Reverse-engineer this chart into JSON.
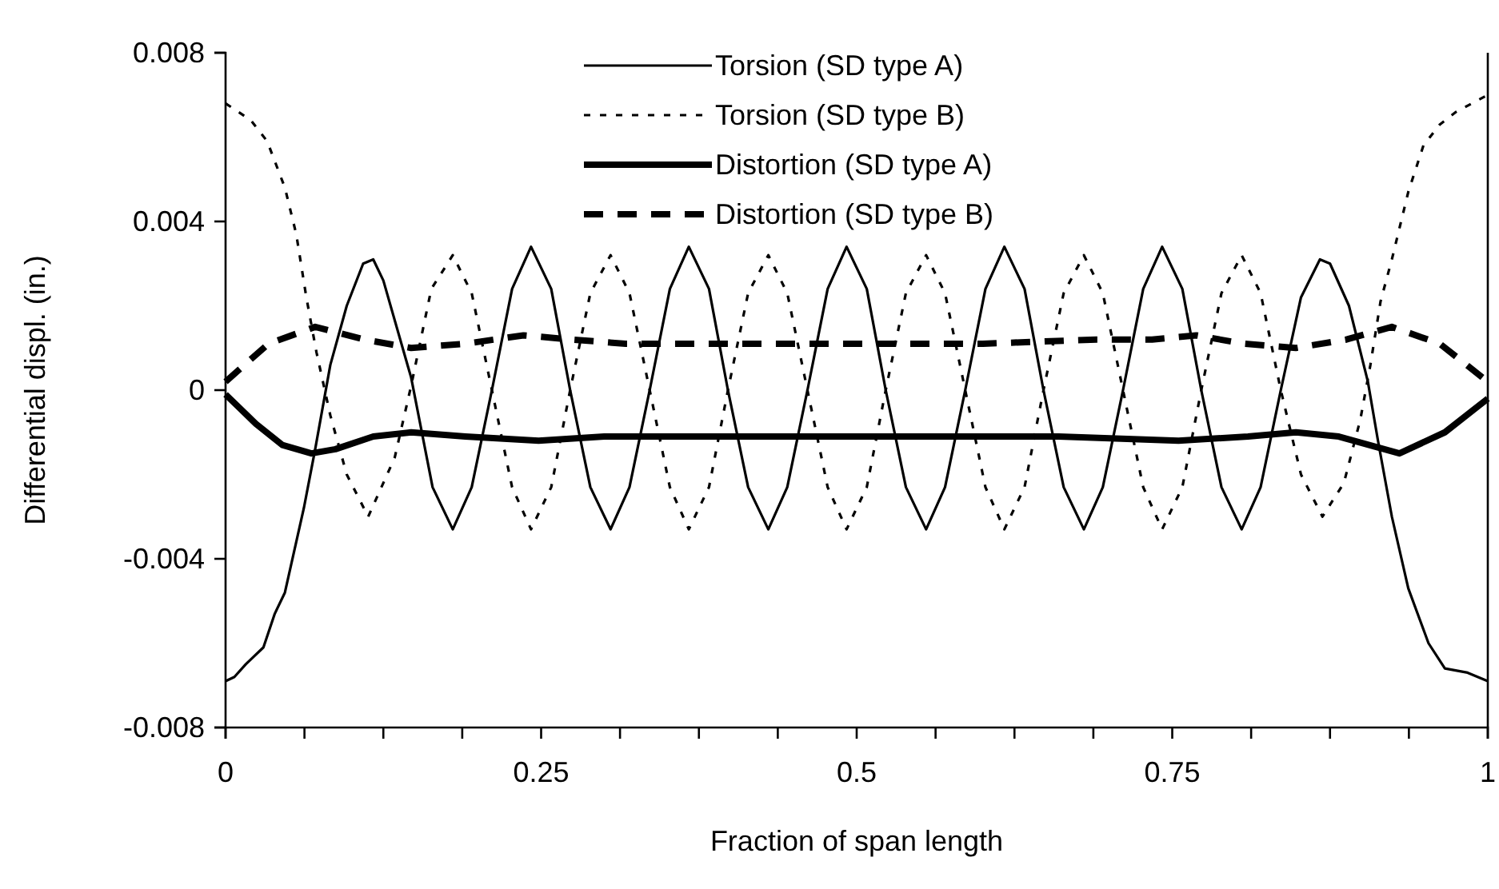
{
  "chart_data": {
    "type": "line",
    "xlabel": "Fraction of span length",
    "ylabel": "Differential displ. (in.)",
    "xlim": [
      0,
      1
    ],
    "ylim": [
      -0.008,
      0.008
    ],
    "xticks": [
      0,
      {
        "value": 0.0625,
        "label": null
      },
      {
        "value": 0.125,
        "label": null
      },
      {
        "value": 0.1875,
        "label": null
      },
      0.25,
      {
        "value": 0.3125,
        "label": null
      },
      {
        "value": 0.375,
        "label": null
      },
      {
        "value": 0.4375,
        "label": null
      },
      0.5,
      {
        "value": 0.5625,
        "label": null
      },
      {
        "value": 0.625,
        "label": null
      },
      {
        "value": 0.6875,
        "label": null
      },
      0.75,
      {
        "value": 0.8125,
        "label": null
      },
      {
        "value": 0.875,
        "label": null
      },
      {
        "value": 0.9375,
        "label": null
      },
      1
    ],
    "yticks": [
      -0.008,
      -0.004,
      0,
      0.004,
      0.008
    ],
    "grid": false,
    "legend": "top",
    "marker": "none",
    "series": [
      {
        "name": "Torsion (SD type A)",
        "color": "#000000",
        "line_style": "solid",
        "x": [
          0,
          0.007,
          0.016,
          0.03,
          0.039,
          0.047,
          0.062,
          0.071,
          0.083,
          0.096,
          0.109,
          0.117,
          0.125,
          0.147,
          0.164,
          0.18,
          0.195,
          0.211,
          0.227,
          0.242,
          0.258,
          0.273,
          0.289,
          0.305,
          0.32,
          0.336,
          0.352,
          0.367,
          0.383,
          0.398,
          0.414,
          0.43,
          0.445,
          0.461,
          0.477,
          0.492,
          0.508,
          0.523,
          0.539,
          0.555,
          0.57,
          0.586,
          0.602,
          0.617,
          0.633,
          0.648,
          0.664,
          0.68,
          0.695,
          0.711,
          0.727,
          0.742,
          0.758,
          0.773,
          0.789,
          0.805,
          0.82,
          0.836,
          0.852,
          0.867,
          0.875,
          0.89,
          0.905,
          0.913,
          0.924,
          0.937,
          0.953,
          0.966,
          0.984,
          1
        ],
        "values": [
          -0.0069,
          -0.0068,
          -0.0065,
          -0.0061,
          -0.0053,
          -0.0048,
          -0.0028,
          -0.0014,
          0.0006,
          0.002,
          0.003,
          0.0031,
          0.0026,
          0.0003,
          -0.0023,
          -0.0033,
          -0.0023,
          0,
          0.0024,
          0.0034,
          0.0024,
          0,
          -0.0023,
          -0.0033,
          -0.0023,
          0,
          0.0024,
          0.0034,
          0.0024,
          0,
          -0.0023,
          -0.0033,
          -0.0023,
          0,
          0.0024,
          0.0034,
          0.0024,
          0,
          -0.0023,
          -0.0033,
          -0.0023,
          0,
          0.0024,
          0.0034,
          0.0024,
          0,
          -0.0023,
          -0.0033,
          -0.0023,
          0,
          0.0024,
          0.0034,
          0.0024,
          0,
          -0.0023,
          -0.0033,
          -0.0023,
          0,
          0.0022,
          0.0031,
          0.003,
          0.002,
          0.0002,
          -0.0012,
          -0.003,
          -0.0047,
          -0.006,
          -0.0066,
          -0.0067,
          -0.0069
        ]
      },
      {
        "name": "Torsion (SD type B)",
        "color": "#000000",
        "line_style": "dotted",
        "x": [
          0,
          0.02,
          0.033,
          0.047,
          0.056,
          0.064,
          0.072,
          0.083,
          0.096,
          0.113,
          0.134,
          0.147,
          0.163,
          0.18,
          0.195,
          0.211,
          0.227,
          0.242,
          0.258,
          0.273,
          0.289,
          0.305,
          0.32,
          0.336,
          0.352,
          0.367,
          0.383,
          0.398,
          0.414,
          0.43,
          0.445,
          0.461,
          0.477,
          0.492,
          0.508,
          0.523,
          0.539,
          0.555,
          0.57,
          0.586,
          0.602,
          0.617,
          0.633,
          0.648,
          0.664,
          0.68,
          0.695,
          0.711,
          0.727,
          0.742,
          0.758,
          0.773,
          0.789,
          0.805,
          0.82,
          0.836,
          0.852,
          0.869,
          0.886,
          0.899,
          0.907,
          0.915,
          0.924,
          0.937,
          0.949,
          0.962,
          0.975,
          1
        ],
        "values": [
          0.0068,
          0.0064,
          0.0059,
          0.0048,
          0.0037,
          0.0022,
          0.0009,
          -0.0006,
          -0.002,
          -0.003,
          -0.0016,
          0.0001,
          0.0024,
          0.0032,
          0.0023,
          0,
          -0.0023,
          -0.0033,
          -0.0023,
          0,
          0.0023,
          0.0032,
          0.0023,
          0,
          -0.0023,
          -0.0033,
          -0.0023,
          0,
          0.0023,
          0.0032,
          0.0023,
          0,
          -0.0023,
          -0.0033,
          -0.0023,
          0,
          0.0023,
          0.0032,
          0.0023,
          0,
          -0.0023,
          -0.0033,
          -0.0023,
          0,
          0.0023,
          0.0032,
          0.0023,
          0,
          -0.0023,
          -0.0033,
          -0.0023,
          0,
          0.0023,
          0.0032,
          0.0023,
          0,
          -0.002,
          -0.003,
          -0.0022,
          -0.0007,
          0.0006,
          0.0021,
          0.0031,
          0.0047,
          0.0058,
          0.0063,
          0.0066,
          0.007
        ]
      },
      {
        "name": "Distortion (SD type A)",
        "color": "#000000",
        "line_style": "solid",
        "x": [
          0,
          0.024,
          0.045,
          0.068,
          0.087,
          0.117,
          0.147,
          0.19,
          0.248,
          0.3,
          0.4,
          0.5,
          0.6,
          0.66,
          0.755,
          0.81,
          0.848,
          0.882,
          0.93,
          0.966,
          1
        ],
        "values": [
          -0.0001,
          -0.0008,
          -0.0013,
          -0.0015,
          -0.0014,
          -0.0011,
          -0.001,
          -0.0011,
          -0.0012,
          -0.0011,
          -0.0011,
          -0.0011,
          -0.0011,
          -0.0011,
          -0.0012,
          -0.0011,
          -0.001,
          -0.0011,
          -0.0015,
          -0.001,
          -0.0002
        ]
      },
      {
        "name": "Distortion (SD type B)",
        "color": "#000000",
        "line_style": "dashed",
        "x": [
          0,
          0.034,
          0.071,
          0.11,
          0.147,
          0.19,
          0.236,
          0.274,
          0.317,
          0.4,
          0.5,
          0.6,
          0.69,
          0.734,
          0.769,
          0.807,
          0.848,
          0.888,
          0.924,
          0.962,
          1
        ],
        "values": [
          0.0002,
          0.0011,
          0.0015,
          0.0012,
          0.001,
          0.0011,
          0.0013,
          0.0012,
          0.0011,
          0.0011,
          0.0011,
          0.0011,
          0.0012,
          0.0012,
          0.0013,
          0.0011,
          0.001,
          0.0012,
          0.0015,
          0.0011,
          0.0002
        ]
      }
    ]
  }
}
